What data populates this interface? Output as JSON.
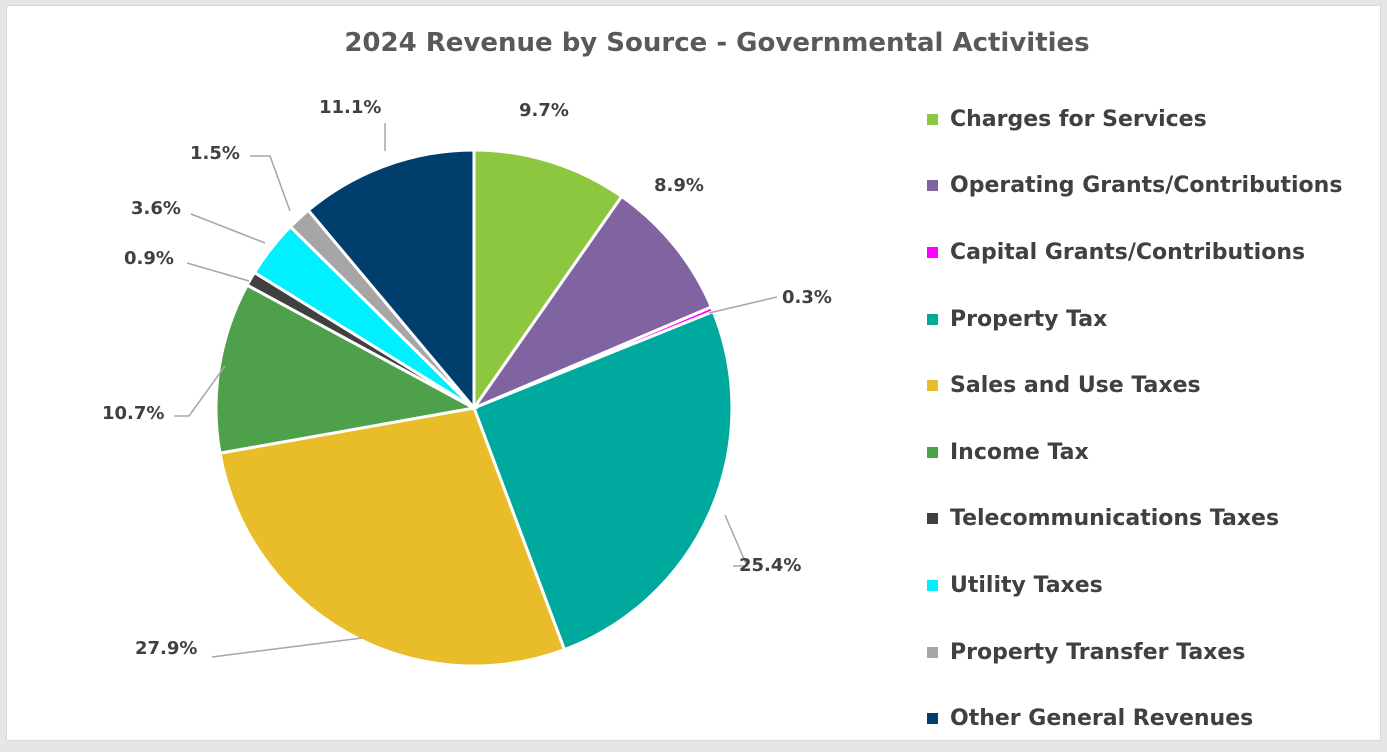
{
  "chart_data": {
    "type": "pie",
    "title": "2024 Revenue by Source - Governmental Activities",
    "legend_position": "right",
    "slices": [
      {
        "name": "Charges for Services",
        "value": 9.7,
        "label": "9.7%",
        "color": "#8dc63f"
      },
      {
        "name": "Operating Grants/Contributions",
        "value": 8.9,
        "label": "8.9%",
        "color": "#8064a2"
      },
      {
        "name": "Capital Grants/Contributions",
        "value": 0.3,
        "label": "0.3%",
        "color": "#ff00ff"
      },
      {
        "name": "Property Tax",
        "value": 25.4,
        "label": "25.4%",
        "color": "#00a99d"
      },
      {
        "name": "Sales and Use Taxes",
        "value": 27.9,
        "label": "27.9%",
        "color": "#e9bc2a"
      },
      {
        "name": "Income Tax",
        "value": 10.7,
        "label": "10.7%",
        "color": "#4ea04a"
      },
      {
        "name": "Telecommunications Taxes",
        "value": 0.9,
        "label": "0.9%",
        "color": "#404040"
      },
      {
        "name": "Utility Taxes",
        "value": 3.6,
        "label": "3.6%",
        "color": "#00f0ff"
      },
      {
        "name": "Property Transfer Taxes",
        "value": 1.5,
        "label": "1.5%",
        "color": "#a6a6a6"
      },
      {
        "name": "Other General Revenues",
        "value": 11.1,
        "label": "11.1%",
        "color": "#003e6e"
      }
    ]
  }
}
